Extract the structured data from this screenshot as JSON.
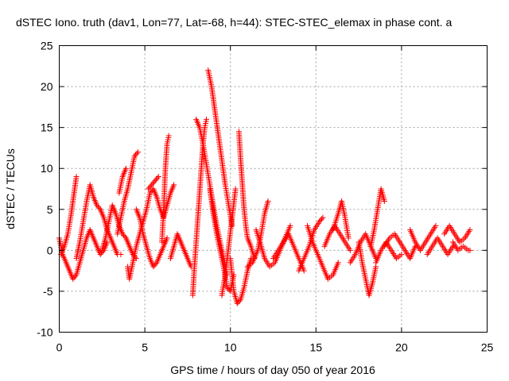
{
  "chart_data": {
    "type": "scatter",
    "title": "dSTEC Iono. truth (dav1, Lon=77, Lat=-68, h=44): STEC-STEC_elemax in phase cont. a",
    "xlabel": "GPS time / hours of day 050 of year 2016",
    "ylabel": "dSTEC  / TECUs",
    "xlim": [
      0,
      25
    ],
    "ylim": [
      -10,
      25
    ],
    "xticks": [
      0,
      5,
      10,
      15,
      20,
      25
    ],
    "yticks": [
      -10,
      -5,
      0,
      5,
      10,
      15,
      20,
      25
    ],
    "xtick_labels": [
      "0",
      "5",
      "10",
      "15",
      "20",
      "25"
    ],
    "ytick_labels": [
      "-10",
      "-5",
      "0",
      "5",
      "10",
      "15",
      "20",
      "25"
    ],
    "grid": true,
    "marker": "plus",
    "color": "#ff0000",
    "series": [
      {
        "name": "",
        "arcs": [
          [
            [
              0.0,
              1.5
            ],
            [
              0.2,
              -0.5
            ],
            [
              0.4,
              -1.5
            ],
            [
              0.6,
              -2.5
            ],
            [
              0.8,
              -3.5
            ],
            [
              1.0,
              -3.0
            ],
            [
              1.2,
              -1.5
            ],
            [
              1.4,
              0.0
            ],
            [
              1.6,
              1.5
            ],
            [
              1.8,
              2.5
            ],
            [
              2.0,
              1.5
            ],
            [
              2.2,
              0.5
            ],
            [
              2.4,
              -0.5
            ],
            [
              2.6,
              0.0
            ],
            [
              2.8,
              1.0
            ]
          ],
          [
            [
              0.1,
              -0.5
            ],
            [
              0.3,
              0.5
            ],
            [
              0.5,
              2.0
            ],
            [
              0.7,
              4.5
            ],
            [
              0.9,
              7.5
            ],
            [
              1.0,
              9.0
            ]
          ],
          [
            [
              1.0,
              -1.0
            ],
            [
              1.2,
              1.0
            ],
            [
              1.4,
              3.5
            ],
            [
              1.6,
              6.0
            ],
            [
              1.8,
              8.0
            ],
            [
              2.0,
              6.5
            ],
            [
              2.2,
              5.5
            ],
            [
              2.4,
              5.0
            ],
            [
              2.6,
              4.0
            ],
            [
              2.8,
              2.5
            ],
            [
              3.0,
              1.5
            ],
            [
              3.2,
              0.5
            ],
            [
              3.4,
              -0.5
            ],
            [
              3.6,
              -0.5
            ]
          ],
          [
            [
              2.5,
              0.0
            ],
            [
              2.7,
              1.5
            ],
            [
              2.9,
              3.5
            ],
            [
              3.1,
              5.5
            ],
            [
              3.3,
              4.5
            ],
            [
              3.5,
              3.0
            ],
            [
              3.7,
              2.0
            ],
            [
              3.9,
              1.5
            ],
            [
              4.1,
              0.5
            ],
            [
              4.3,
              -0.5
            ],
            [
              4.5,
              -1.0
            ]
          ],
          [
            [
              3.4,
              2.0
            ],
            [
              3.6,
              4.0
            ],
            [
              3.8,
              6.0
            ],
            [
              4.0,
              7.5
            ],
            [
              4.2,
              9.5
            ],
            [
              4.4,
              11.5
            ],
            [
              4.6,
              12.0
            ]
          ],
          [
            [
              3.5,
              7.0
            ],
            [
              3.7,
              9.0
            ],
            [
              3.9,
              10.0
            ]
          ],
          [
            [
              4.0,
              -2.0
            ],
            [
              4.1,
              -3.5
            ],
            [
              4.3,
              -1.5
            ],
            [
              4.5,
              0.5
            ],
            [
              4.7,
              2.0
            ],
            [
              4.9,
              3.5
            ],
            [
              5.1,
              5.0
            ],
            [
              5.3,
              7.0
            ],
            [
              5.5,
              7.5
            ],
            [
              5.7,
              6.5
            ],
            [
              5.9,
              5.0
            ],
            [
              6.1,
              4.0
            ],
            [
              6.3,
              5.5
            ],
            [
              6.5,
              7.0
            ],
            [
              6.7,
              8.0
            ]
          ],
          [
            [
              4.5,
              5.0
            ],
            [
              4.7,
              4.0
            ],
            [
              4.9,
              2.0
            ],
            [
              5.1,
              0.5
            ],
            [
              5.3,
              -1.0
            ],
            [
              5.5,
              -2.0
            ],
            [
              5.7,
              -1.5
            ],
            [
              5.9,
              -0.5
            ],
            [
              6.1,
              0.5
            ],
            [
              6.3,
              1.5
            ]
          ],
          [
            [
              5.2,
              7.5
            ],
            [
              5.4,
              8.0
            ],
            [
              5.6,
              8.5
            ],
            [
              5.8,
              9.0
            ]
          ],
          [
            [
              6.0,
              1.0
            ],
            [
              6.1,
              5.0
            ],
            [
              6.2,
              10.0
            ],
            [
              6.3,
              13.0
            ],
            [
              6.4,
              14.0
            ]
          ],
          [
            [
              6.5,
              -1.0
            ],
            [
              6.7,
              0.5
            ],
            [
              6.9,
              2.0
            ],
            [
              7.1,
              1.0
            ],
            [
              7.3,
              0.0
            ],
            [
              7.5,
              -1.0
            ],
            [
              7.7,
              -2.0
            ]
          ],
          [
            [
              7.8,
              -5.5
            ],
            [
              7.9,
              -2.0
            ],
            [
              8.0,
              1.0
            ],
            [
              8.1,
              4.0
            ],
            [
              8.2,
              7.0
            ],
            [
              8.3,
              10.0
            ],
            [
              8.4,
              13.0
            ],
            [
              8.5,
              15.0
            ],
            [
              8.6,
              16.0
            ]
          ],
          [
            [
              8.0,
              16.0
            ],
            [
              8.2,
              15.0
            ],
            [
              8.4,
              13.0
            ],
            [
              8.6,
              10.5
            ],
            [
              8.8,
              8.0
            ],
            [
              9.0,
              5.5
            ],
            [
              9.2,
              3.0
            ],
            [
              9.4,
              1.0
            ],
            [
              9.6,
              -1.0
            ],
            [
              9.8,
              -3.0
            ]
          ],
          [
            [
              8.7,
              22.0
            ],
            [
              8.9,
              20.0
            ],
            [
              9.1,
              17.0
            ],
            [
              9.3,
              14.0
            ],
            [
              9.5,
              11.0
            ],
            [
              9.7,
              8.0
            ],
            [
              9.9,
              5.5
            ],
            [
              10.1,
              3.0
            ]
          ],
          [
            [
              8.8,
              7.5
            ],
            [
              9.0,
              4.5
            ],
            [
              9.2,
              2.0
            ],
            [
              9.4,
              0.0
            ],
            [
              9.6,
              -2.0
            ],
            [
              9.8,
              -4.5
            ],
            [
              10.0,
              -5.0
            ],
            [
              10.2,
              -3.0
            ]
          ],
          [
            [
              9.5,
              -5.5
            ],
            [
              9.7,
              -3.0
            ],
            [
              9.9,
              0.5
            ],
            [
              10.1,
              4.0
            ],
            [
              10.3,
              7.5
            ]
          ],
          [
            [
              10.0,
              -1.0
            ],
            [
              10.2,
              -5.0
            ],
            [
              10.4,
              -6.5
            ],
            [
              10.6,
              -6.0
            ],
            [
              10.8,
              -4.5
            ],
            [
              11.0,
              -2.5
            ],
            [
              11.2,
              -1.0
            ]
          ],
          [
            [
              10.5,
              14.5
            ],
            [
              10.6,
              11.0
            ],
            [
              10.7,
              8.0
            ],
            [
              10.8,
              5.0
            ],
            [
              10.9,
              3.0
            ],
            [
              11.0,
              1.5
            ],
            [
              11.2,
              0.5
            ],
            [
              11.4,
              -1.0
            ]
          ],
          [
            [
              11.0,
              -2.0
            ],
            [
              11.3,
              -1.5
            ],
            [
              11.6,
              0.0
            ],
            [
              11.8,
              2.0
            ],
            [
              12.0,
              4.5
            ],
            [
              12.2,
              6.0
            ]
          ],
          [
            [
              11.5,
              2.5
            ],
            [
              11.8,
              0.5
            ],
            [
              12.0,
              -1.0
            ],
            [
              12.3,
              -2.0
            ],
            [
              12.6,
              -1.5
            ],
            [
              12.9,
              0.0
            ],
            [
              13.2,
              1.5
            ],
            [
              13.5,
              3.0
            ]
          ],
          [
            [
              12.5,
              -1.0
            ],
            [
              12.8,
              0.0
            ],
            [
              13.1,
              1.0
            ],
            [
              13.4,
              2.0
            ],
            [
              13.7,
              0.5
            ],
            [
              14.0,
              -1.0
            ],
            [
              14.3,
              -2.5
            ]
          ],
          [
            [
              14.0,
              -2.5
            ],
            [
              14.3,
              -1.0
            ],
            [
              14.6,
              0.5
            ],
            [
              14.9,
              2.5
            ],
            [
              15.2,
              3.5
            ],
            [
              15.4,
              4.0
            ]
          ],
          [
            [
              14.5,
              3.0
            ],
            [
              14.8,
              1.0
            ],
            [
              15.1,
              -0.5
            ],
            [
              15.4,
              -2.0
            ],
            [
              15.7,
              -3.5
            ],
            [
              16.0,
              -3.0
            ],
            [
              16.3,
              -1.5
            ]
          ],
          [
            [
              15.5,
              0.5
            ],
            [
              15.8,
              2.0
            ],
            [
              16.1,
              3.0
            ],
            [
              16.4,
              2.0
            ],
            [
              16.7,
              1.0
            ],
            [
              17.0,
              0.0
            ]
          ],
          [
            [
              16.0,
              2.5
            ],
            [
              16.3,
              4.5
            ],
            [
              16.5,
              6.0
            ],
            [
              16.7,
              4.0
            ],
            [
              16.9,
              1.5
            ]
          ],
          [
            [
              17.0,
              -1.5
            ],
            [
              17.3,
              -0.5
            ],
            [
              17.6,
              1.0
            ],
            [
              17.9,
              2.0
            ],
            [
              18.2,
              0.5
            ],
            [
              18.5,
              -1.0
            ]
          ],
          [
            [
              17.5,
              1.0
            ],
            [
              17.7,
              -1.5
            ],
            [
              17.9,
              -3.5
            ],
            [
              18.1,
              -5.5
            ],
            [
              18.3,
              -4.0
            ],
            [
              18.5,
              -2.0
            ]
          ],
          [
            [
              18.2,
              0.5
            ],
            [
              18.4,
              2.5
            ],
            [
              18.6,
              5.0
            ],
            [
              18.8,
              7.5
            ],
            [
              19.0,
              6.0
            ]
          ],
          [
            [
              18.5,
              -1.5
            ],
            [
              18.8,
              0.0
            ],
            [
              19.1,
              1.0
            ],
            [
              19.4,
              0.0
            ],
            [
              19.7,
              -1.0
            ],
            [
              20.0,
              -0.5
            ]
          ],
          [
            [
              19.0,
              0.5
            ],
            [
              19.3,
              1.5
            ],
            [
              19.6,
              2.0
            ],
            [
              19.9,
              1.0
            ],
            [
              20.2,
              0.0
            ],
            [
              20.5,
              -1.0
            ],
            [
              20.8,
              0.5
            ]
          ],
          [
            [
              20.5,
              2.5
            ],
            [
              20.8,
              1.0
            ],
            [
              21.1,
              0.0
            ],
            [
              21.4,
              1.0
            ],
            [
              21.7,
              2.0
            ],
            [
              22.0,
              3.0
            ]
          ],
          [
            [
              21.5,
              -0.5
            ],
            [
              21.8,
              0.5
            ],
            [
              22.1,
              1.5
            ],
            [
              22.4,
              0.5
            ],
            [
              22.7,
              -0.5
            ],
            [
              23.0,
              0.5
            ]
          ],
          [
            [
              22.5,
              2.0
            ],
            [
              22.8,
              3.0
            ],
            [
              23.1,
              2.0
            ],
            [
              23.4,
              1.0
            ],
            [
              23.7,
              1.5
            ],
            [
              24.0,
              2.5
            ]
          ],
          [
            [
              23.0,
              1.0
            ],
            [
              23.3,
              0.0
            ],
            [
              23.6,
              0.5
            ],
            [
              23.9,
              0.0
            ],
            [
              24.0,
              0.0
            ]
          ]
        ]
      }
    ]
  }
}
